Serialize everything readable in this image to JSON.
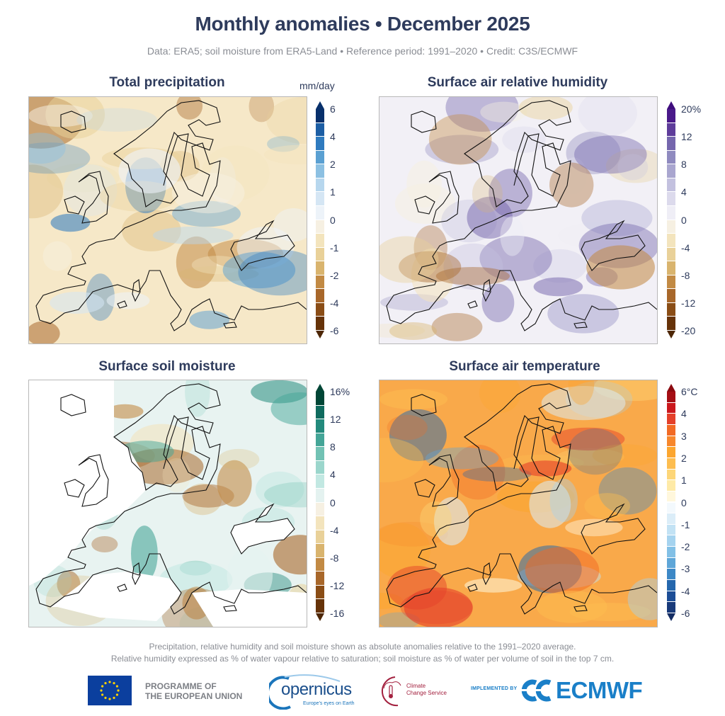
{
  "header": {
    "title": "Monthly anomalies • December 2025",
    "subtitle": "Data: ERA5; soil moisture from ERA5-Land • Reference period: 1991–2020 • Credit: C3S/ECMWF"
  },
  "panels": [
    {
      "id": "precipitation",
      "title": "Total precipitation",
      "unit": "mm/day",
      "colorbar": {
        "labels": [
          "6",
          "4",
          "2",
          "1",
          "0",
          "-1",
          "-2",
          "-4",
          "-6"
        ],
        "colors": [
          "#08306b",
          "#1c5ea4",
          "#2f7bbf",
          "#5aa0d2",
          "#8cc0e2",
          "#b7d7ee",
          "#d5e6f4",
          "#edf3f9",
          "#f6f0e2",
          "#f3e4bd",
          "#e9d199",
          "#d9b46e",
          "#c28a44",
          "#a8672a",
          "#8a4d16",
          "#663309"
        ],
        "arrow_top": "#08306b",
        "arrow_bottom": "#4d2606"
      },
      "map_palette": {
        "ocean_base": "#e6f0f8",
        "land_base": "#f6e8c8",
        "wet": "#2f7bbf",
        "dry": "#a8672a"
      }
    },
    {
      "id": "humidity",
      "title": "Surface air relative humidity",
      "unit": "",
      "colorbar": {
        "labels": [
          "20%",
          "12",
          "8",
          "4",
          "0",
          "-4",
          "-8",
          "-12",
          "-20"
        ],
        "colors": [
          "#4a1a8a",
          "#5e3c9a",
          "#7566ad",
          "#8f8abf",
          "#a9a6cf",
          "#c3c1df",
          "#dcdaec",
          "#efeef6",
          "#f6f0e2",
          "#f3e4bd",
          "#e9d199",
          "#d9b46e",
          "#c28a44",
          "#a8672a",
          "#8a4d16",
          "#663309"
        ],
        "arrow_top": "#3f0d7d",
        "arrow_bottom": "#4d2606"
      },
      "map_palette": {
        "ocean_base": "#eeedf6",
        "land_base": "#f2f0f6",
        "wet": "#8f8abf",
        "dry": "#c28a44"
      }
    },
    {
      "id": "soil-moisture",
      "title": "Surface soil moisture",
      "unit": "",
      "colorbar": {
        "labels": [
          "16%",
          "12",
          "8",
          "4",
          "0",
          "-4",
          "-8",
          "-12",
          "-16"
        ],
        "colors": [
          "#014636",
          "#0f6b5e",
          "#238a7c",
          "#44a597",
          "#72c2b4",
          "#9bd6cc",
          "#c2e8e2",
          "#e4f2f0",
          "#f6f0e2",
          "#f3e4bd",
          "#e9d199",
          "#d9b46e",
          "#c28a44",
          "#a8672a",
          "#8a4d16",
          "#663309"
        ],
        "arrow_top": "#014636",
        "arrow_bottom": "#4d2606"
      },
      "map_palette": {
        "ocean_base": "#ffffff",
        "land_base": "#e8f3f1",
        "wet": "#72c2b4",
        "dry": "#c28a44"
      }
    },
    {
      "id": "temperature",
      "title": "Surface air temperature",
      "unit": "",
      "colorbar": {
        "labels": [
          "6°C",
          "4",
          "3",
          "2",
          "1",
          "0",
          "-1",
          "-2",
          "-3",
          "-4",
          "-6"
        ],
        "colors": [
          "#a50f15",
          "#cb181d",
          "#e4402a",
          "#f26a24",
          "#f7872c",
          "#fca62f",
          "#fdbd4f",
          "#fdd679",
          "#feeaa7",
          "#fff7dc",
          "#f3f9fd",
          "#dbedf8",
          "#c2e2f4",
          "#a5d3ef",
          "#82c0e6",
          "#5ea6d8",
          "#3c88c6",
          "#2567ad",
          "#1c4d96",
          "#193a7a"
        ],
        "arrow_top": "#8c0a10",
        "arrow_bottom": "#142c63"
      },
      "map_palette": {
        "ocean_base": "#fde0a0",
        "land_base": "#f9a94a",
        "wet": "#cb181d",
        "dry": "#5ea6d8"
      }
    }
  ],
  "footer": {
    "notes": [
      "Precipitation, relative humidity and soil moisture shown as absolute anomalies relative to the 1991–2020 average.",
      "Relative humidity expressed as % of water vapour relative to saturation; soil moisture as % of water per volume of soil in the top 7 cm."
    ],
    "logos": {
      "eu_line1": "PROGRAMME OF",
      "eu_line2": "THE EUROPEAN UNION",
      "copernicus": "opernicus",
      "copernicus_tagline": "Europe's eyes on Earth",
      "c3s_line1": "Climate",
      "c3s_line2": "Change Service",
      "implemented_by": "IMPLEMENTED BY",
      "ecmwf": "ECMWF"
    }
  }
}
